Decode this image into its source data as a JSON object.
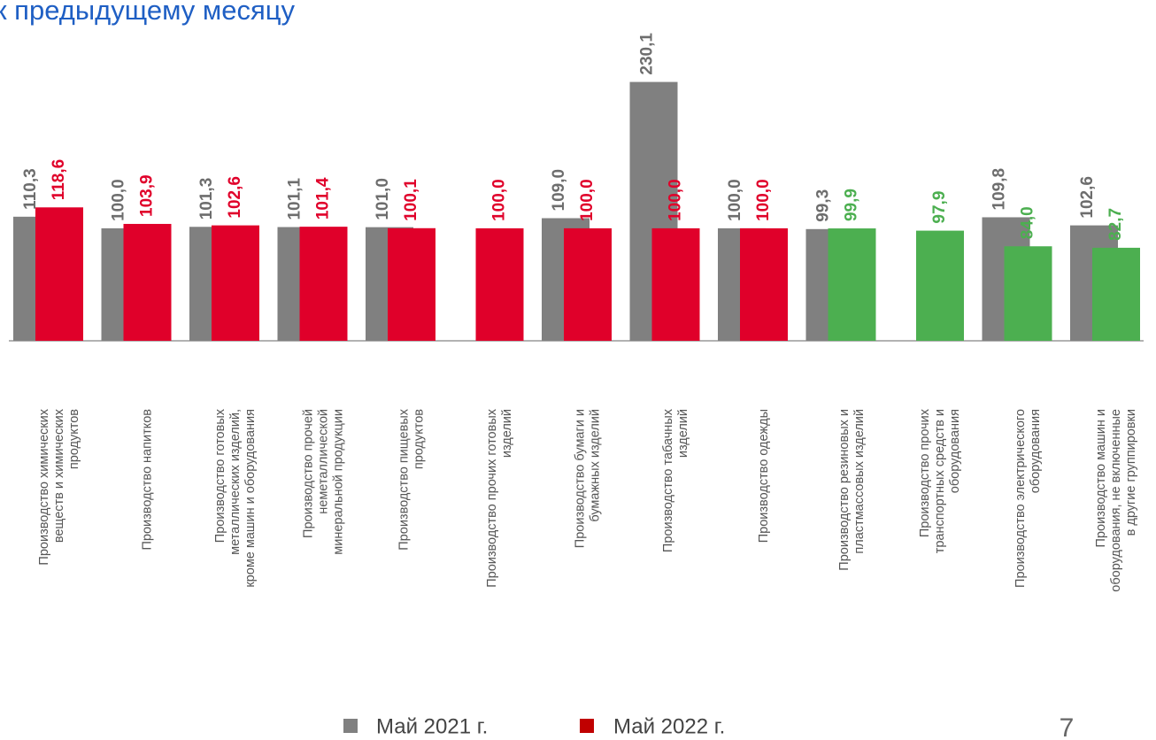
{
  "chart_data": {
    "type": "bar",
    "title": "к предыдущему месяцу",
    "categories": [
      [
        "Производство химических",
        "веществ и химических",
        "продуктов"
      ],
      [
        "Производство напитков"
      ],
      [
        "Производство готовых",
        "металлических изделий,",
        "кроме машин и оборудования"
      ],
      [
        "Производство прочей",
        "неметаллической",
        "минеральной продукции"
      ],
      [
        "Производство пищевых",
        "продуктов"
      ],
      [
        "Производство прочих готовых",
        "изделий"
      ],
      [
        "Производство бумаги и",
        "бумажных изделий"
      ],
      [
        "Производство табачных",
        "изделий"
      ],
      [
        "Производство одежды"
      ],
      [
        "Производство резиновых и",
        "пластмассовых изделий"
      ],
      [
        "Производство прочих",
        "транспортных средств и",
        "оборудования"
      ],
      [
        "Производство электрического",
        "оборудования"
      ],
      [
        "Производство машин и",
        "оборудования, не включенные",
        "в другие группировки"
      ]
    ],
    "series": [
      {
        "name": "Май 2021 г.",
        "color": "#808080",
        "values": [
          110.3,
          100.0,
          101.3,
          101.1,
          101.0,
          null,
          109.0,
          230.1,
          100.0,
          99.3,
          null,
          109.8,
          102.6
        ],
        "value_labels": [
          "110,3",
          "100,0",
          "101,3",
          "101,1",
          "101,0",
          null,
          "109,0",
          "230,1",
          "100,0",
          "99,3",
          null,
          "109,8",
          "102,6"
        ]
      },
      {
        "name": "Май 2022 г.",
        "color": "#e0002a",
        "colors": [
          "#e0002a",
          "#e0002a",
          "#e0002a",
          "#e0002a",
          "#e0002a",
          "#e0002a",
          "#e0002a",
          "#e0002a",
          "#e0002a",
          "#4caf50",
          "#4caf50",
          "#4caf50",
          "#4caf50"
        ],
        "values": [
          118.6,
          103.9,
          102.6,
          101.4,
          100.1,
          100.0,
          100.0,
          100.0,
          100.0,
          99.9,
          97.9,
          84.0,
          82.7
        ],
        "value_labels": [
          "118,6",
          "103,9",
          "102,6",
          "101,4",
          "100,1",
          "100,0",
          "100,0",
          "100,0",
          "100,0",
          "99,9",
          "97,9",
          "84,0",
          "82,7"
        ]
      }
    ],
    "ylim": [
      0,
      240
    ],
    "page_number": "7"
  }
}
